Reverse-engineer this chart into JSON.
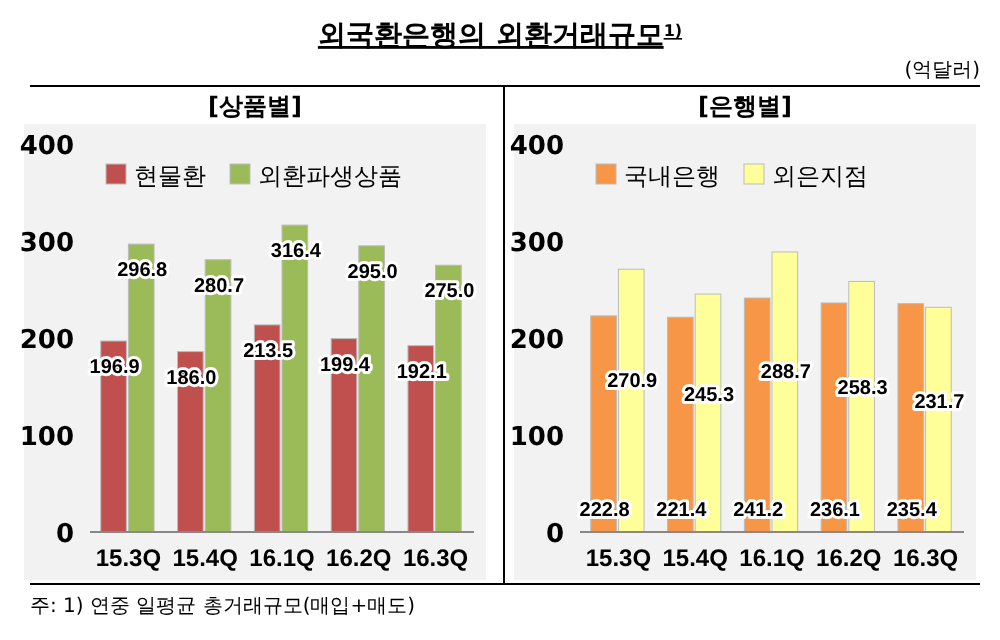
{
  "chart_data": [
    {
      "type": "bar",
      "title": "외국환은행의 외환거래규모$^{1)}$",
      "subtitle": "[상품별]",
      "annotations": [
        "주: 1) 연중 일평균 총거래규모(매입+매도)"
      ],
      "categories": [
        "15.3Q",
        "15.4Q",
        "16.1Q",
        "16.2Q",
        "16.3Q"
      ],
      "series": [
        {
          "name": "현물환",
          "color": "#c0504d",
          "values": [
            196.9,
            186.0,
            213.5,
            199.4,
            192.1
          ],
          "value_labels": [
            "196.9",
            "186.0",
            "213.5",
            "199.4",
            "192.1"
          ]
        },
        {
          "name": "외환파생상품",
          "color": "#9bbb59",
          "values": [
            296.8,
            280.7,
            316.4,
            295.0,
            275.0
          ],
          "value_labels": [
            "296.8",
            "280.7",
            "316.4",
            "295.0",
            "275.0"
          ]
        }
      ],
      "ylim": [
        0,
        400
      ],
      "yticks": [
        0,
        100,
        200,
        300,
        400
      ],
      "legend": "top left",
      "grid": false
    },
    {
      "type": "bar",
      "subtitle": "[은행별]",
      "annotations": [
        "(억달러)"
      ],
      "categories": [
        "15.3Q",
        "15.4Q",
        "16.1Q",
        "16.2Q",
        "16.3Q"
      ],
      "series": [
        {
          "name": "국내은행",
          "color": "#f79646",
          "values": [
            222.8,
            221.4,
            241.2,
            236.1,
            235.4
          ]
        },
        {
          "name": "외은지점",
          "color": "#ffff99",
          "values": [
            270.9,
            245.3,
            288.7,
            258.3,
            231.7
          ]
        }
      ],
      "ylim": [
        0,
        400
      ],
      "yticks": [
        0,
        100,
        200,
        300,
        400
      ],
      "data_labels": true,
      "legend": "top left",
      "grid": false
    }
  ]
}
